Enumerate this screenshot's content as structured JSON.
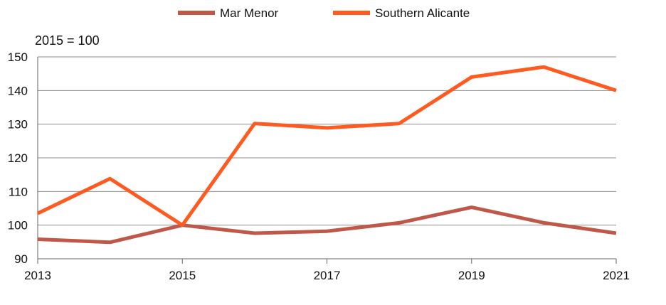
{
  "chart_data": {
    "type": "line",
    "unit_label": "2015 = 100",
    "x": [
      2013,
      2014,
      2015,
      2016,
      2017,
      2018,
      2019,
      2020,
      2021
    ],
    "x_tick_labels": [
      "2013",
      "2015",
      "2017",
      "2019",
      "2021"
    ],
    "x_tick_values": [
      2013,
      2015,
      2017,
      2019,
      2021
    ],
    "y_tick_labels": [
      "90",
      "100",
      "110",
      "120",
      "130",
      "140",
      "150"
    ],
    "y_tick_values": [
      90,
      100,
      110,
      120,
      130,
      140,
      150
    ],
    "ylim": [
      90,
      150
    ],
    "xlim": [
      2013,
      2021
    ],
    "grid": "horizontal",
    "legend_position": "top",
    "series": [
      {
        "name": "Mar Menor",
        "color": "#c0584a",
        "values": [
          95.8,
          94.9,
          100,
          97.6,
          98.2,
          100.7,
          105.3,
          100.7,
          97.6
        ]
      },
      {
        "name": "Southern Alicante",
        "color": "#ff5a1f",
        "values": [
          103.5,
          113.8,
          100,
          130.2,
          128.9,
          130.2,
          144.0,
          147.0,
          140.0
        ]
      }
    ]
  }
}
